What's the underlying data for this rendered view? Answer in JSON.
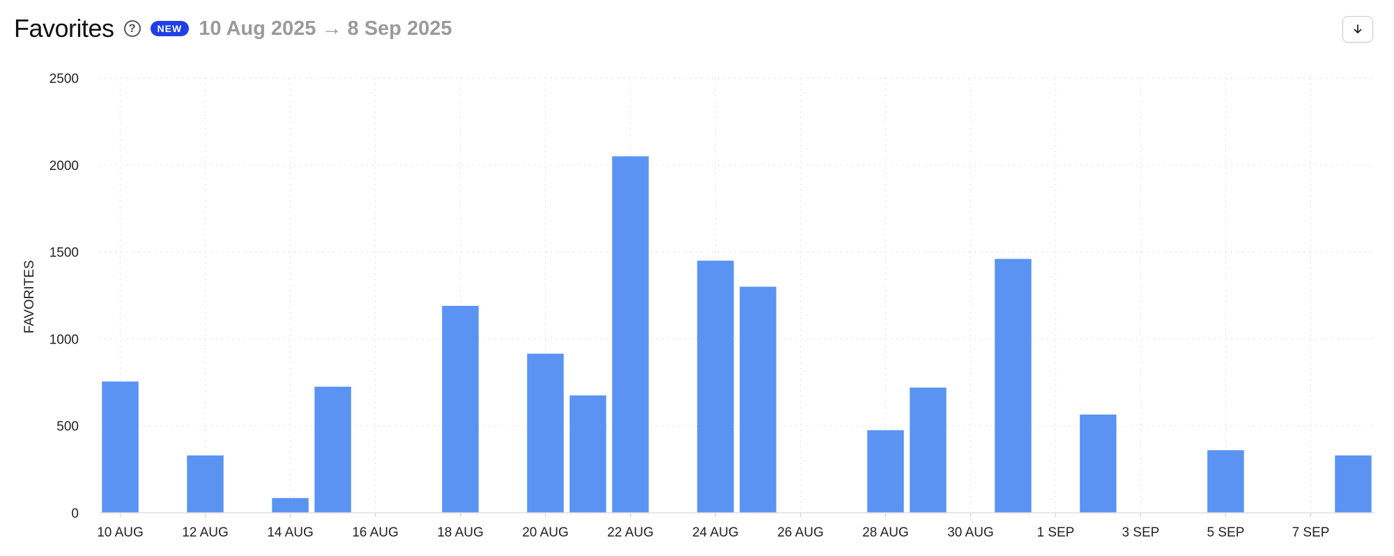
{
  "header": {
    "title": "Favorites",
    "help_glyph": "?",
    "badge": "NEW",
    "date_range": "10 Aug 2025 → 8 Sep 2025",
    "download_icon": "arrow-down-icon"
  },
  "colors": {
    "bar": "#5a93f2",
    "badge": "#1f40e8",
    "grid": "#e2e2e2"
  },
  "chart_data": {
    "type": "bar",
    "title": "",
    "xlabel": "",
    "ylabel": "FAVORITES",
    "ylim": [
      0,
      2500
    ],
    "yticks": [
      "0",
      "500",
      "1000",
      "1500",
      "2000",
      "2500"
    ],
    "grid": true,
    "categories": [
      "10 AUG",
      "11 AUG",
      "12 AUG",
      "13 AUG",
      "14 AUG",
      "15 AUG",
      "16 AUG",
      "17 AUG",
      "18 AUG",
      "19 AUG",
      "20 AUG",
      "21 AUG",
      "22 AUG",
      "23 AUG",
      "24 AUG",
      "25 AUG",
      "26 AUG",
      "27 AUG",
      "28 AUG",
      "29 AUG",
      "30 AUG",
      "31 AUG",
      "1 SEP",
      "2 SEP",
      "3 SEP",
      "4 SEP",
      "5 SEP",
      "6 SEP",
      "7 SEP",
      "8 SEP"
    ],
    "xtick_labels": [
      "10 AUG",
      "12 AUG",
      "14 AUG",
      "16 AUG",
      "18 AUG",
      "20 AUG",
      "22 AUG",
      "24 AUG",
      "26 AUG",
      "28 AUG",
      "30 AUG",
      "1 SEP",
      "3 SEP",
      "5 SEP",
      "7 SEP"
    ],
    "values": [
      755,
      0,
      330,
      0,
      85,
      725,
      0,
      0,
      1190,
      0,
      915,
      675,
      2050,
      0,
      1450,
      1300,
      0,
      0,
      475,
      720,
      0,
      1460,
      0,
      565,
      0,
      0,
      360,
      0,
      0,
      330
    ]
  }
}
